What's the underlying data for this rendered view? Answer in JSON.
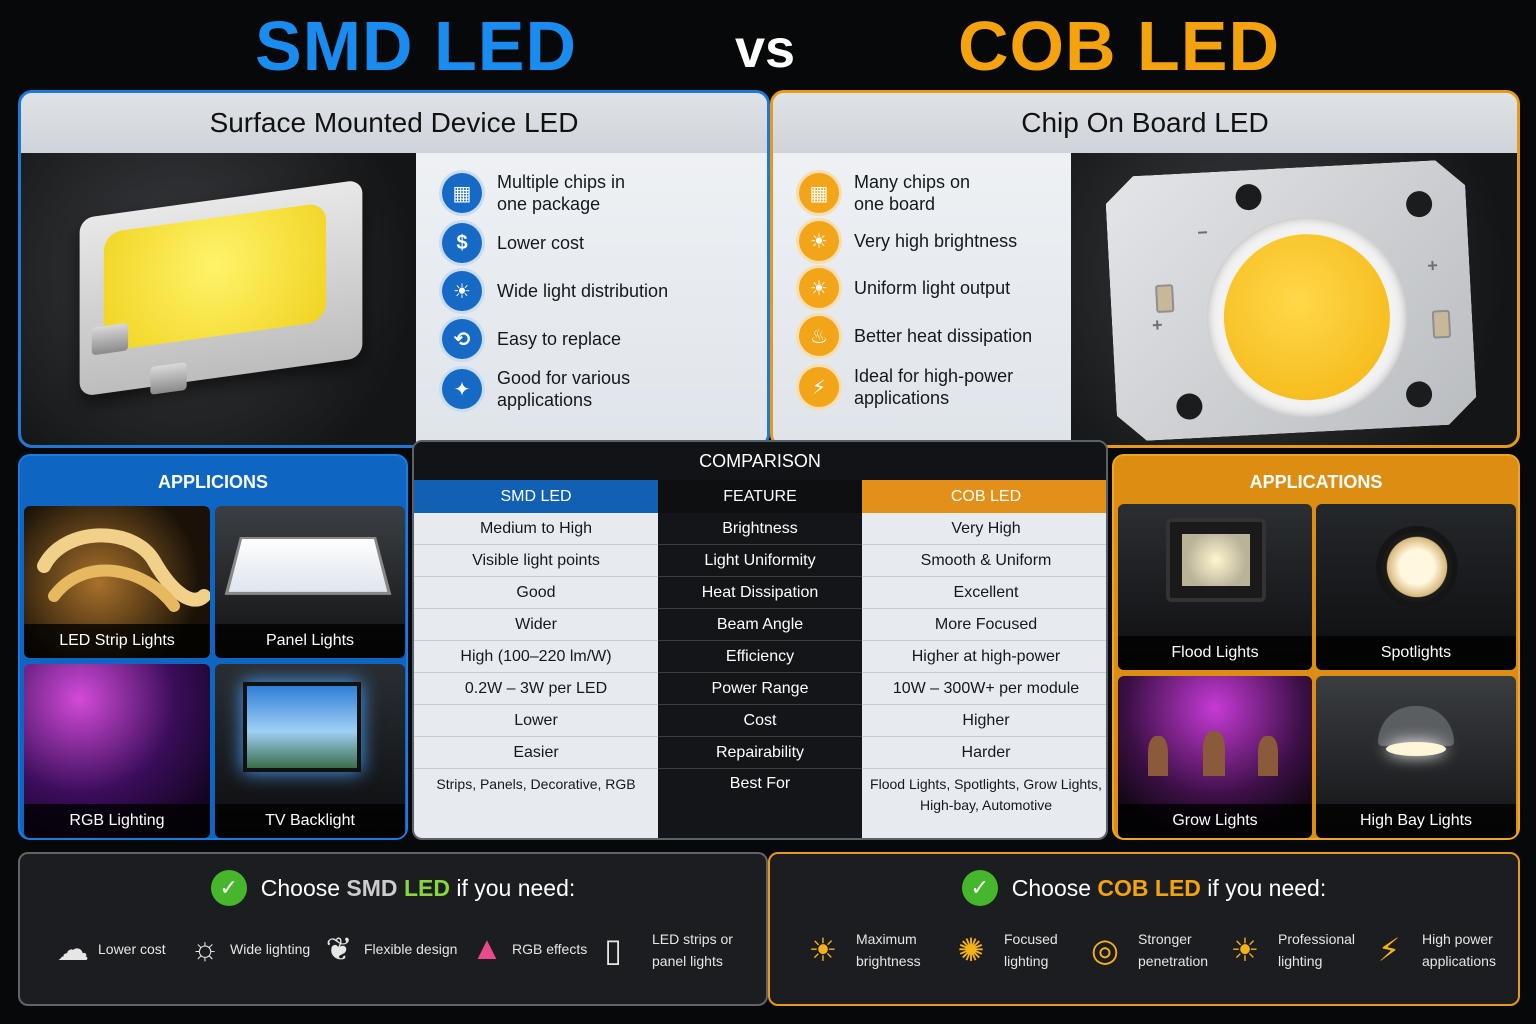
{
  "title": {
    "left": "SMD LED",
    "vs": "vs",
    "right": "COB LED"
  },
  "smd": {
    "heading": "Surface Mounted Device LED",
    "features": [
      {
        "icon": "chip-grid-icon",
        "glyph": "▦",
        "line1": "Multiple chips in",
        "line2": "one package"
      },
      {
        "icon": "dollar-icon",
        "glyph": "$",
        "line1": "Lower cost",
        "line2": ""
      },
      {
        "icon": "sun-icon",
        "glyph": "☀",
        "line1": "Wide light distribution",
        "line2": ""
      },
      {
        "icon": "swap-icon",
        "glyph": "⟲",
        "line1": "Easy to replace",
        "line2": ""
      },
      {
        "icon": "apps-icon",
        "glyph": "✦",
        "line1": "Good for various",
        "line2": "applications"
      }
    ]
  },
  "cob": {
    "heading": "Chip On Board LED",
    "features": [
      {
        "icon": "board-grid-icon",
        "glyph": "▦",
        "line1": "Many chips on",
        "line2": "one board"
      },
      {
        "icon": "bright-sun-icon",
        "glyph": "☀",
        "line1": "Very high brightness",
        "line2": ""
      },
      {
        "icon": "uniform-sun-icon",
        "glyph": "☀",
        "line1": "Uniform light output",
        "line2": ""
      },
      {
        "icon": "heat-icon",
        "glyph": "♨",
        "line1": "Better heat dissipation",
        "line2": ""
      },
      {
        "icon": "power-icon",
        "glyph": "⚡",
        "line1": "Ideal for high-power",
        "line2": "applications"
      }
    ]
  },
  "apps_left": {
    "title": "APPLICIONS",
    "tiles": [
      "LED Strip Lights",
      "Panel Lights",
      "RGB Lighting",
      "TV Backlight"
    ]
  },
  "apps_right": {
    "title": "APPLICATIONS",
    "tiles": [
      "Flood Lights",
      "Spotlights",
      "Grow Lights",
      "High Bay Lights"
    ]
  },
  "comparison": {
    "title": "COMPARISON",
    "headers": {
      "left": "SMD LED",
      "mid": "FEATURE",
      "right": "COB LED"
    },
    "rows": [
      {
        "smd": "Medium to High",
        "feature": "Brightness",
        "cob": "Very High"
      },
      {
        "smd": "Visible light points",
        "feature": "Light Uniformity",
        "cob": "Smooth & Uniform"
      },
      {
        "smd": "Good",
        "feature": "Heat Dissipation",
        "cob": "Excellent"
      },
      {
        "smd": "Wider",
        "feature": "Beam Angle",
        "cob": "More Focused"
      },
      {
        "smd": "High (100–220 lm/W)",
        "feature": "Efficiency",
        "cob": "Higher at high-power"
      },
      {
        "smd": "0.2W – 3W per LED",
        "feature": "Power Range",
        "cob": "10W – 300W+ per module"
      },
      {
        "smd": "Lower",
        "feature": "Cost",
        "cob": "Higher"
      },
      {
        "smd": "Easier",
        "feature": "Repairability",
        "cob": "Harder"
      }
    ],
    "best_for": {
      "smd": "Strips, Panels, Decorative, RGB",
      "feature": "Best For",
      "cob_line1": "Flood Lights, Spotlights, Grow Lights,",
      "cob_line2": "High-bay, Automotive"
    }
  },
  "choose_smd": {
    "prefix": "Choose ",
    "smd": "SMD",
    "led": "LED",
    "suffix": " if you need:",
    "items": [
      {
        "icon": "coin-hand-icon",
        "glyph": "☁",
        "line1": "Lower cost",
        "line2": ""
      },
      {
        "icon": "bulb-icon",
        "glyph": "☼",
        "line1": "Wide lighting",
        "line2": ""
      },
      {
        "icon": "leaf-icon",
        "glyph": "❦",
        "line1": "Flexible design",
        "line2": ""
      },
      {
        "icon": "rgb-icon",
        "glyph": "▲",
        "line1": "RGB effects",
        "line2": ""
      },
      {
        "icon": "panel-icon",
        "glyph": "▯",
        "line1": "LED strips or",
        "line2": "panel lights"
      }
    ]
  },
  "choose_cob": {
    "prefix": "Choose ",
    "cob": "COB LED",
    "suffix": " if you need:",
    "items": [
      {
        "icon": "max-sun-icon",
        "glyph": "☀",
        "line1": "Maximum",
        "line2": "brightness"
      },
      {
        "icon": "focus-bulb-icon",
        "glyph": "✺",
        "line1": "Focused",
        "line2": "lighting"
      },
      {
        "icon": "target-icon",
        "glyph": "◎",
        "line1": "Stronger",
        "line2": "penetration"
      },
      {
        "icon": "pro-sun-icon",
        "glyph": "☀",
        "line1": "Professional",
        "line2": "lighting"
      },
      {
        "icon": "bolt-icon",
        "glyph": "⚡",
        "line1": "High power",
        "line2": "applications"
      }
    ]
  },
  "colors": {
    "smd_blue": "#1a8cf0",
    "cob_orange": "#f4a20e",
    "check_green": "#46b72d"
  }
}
